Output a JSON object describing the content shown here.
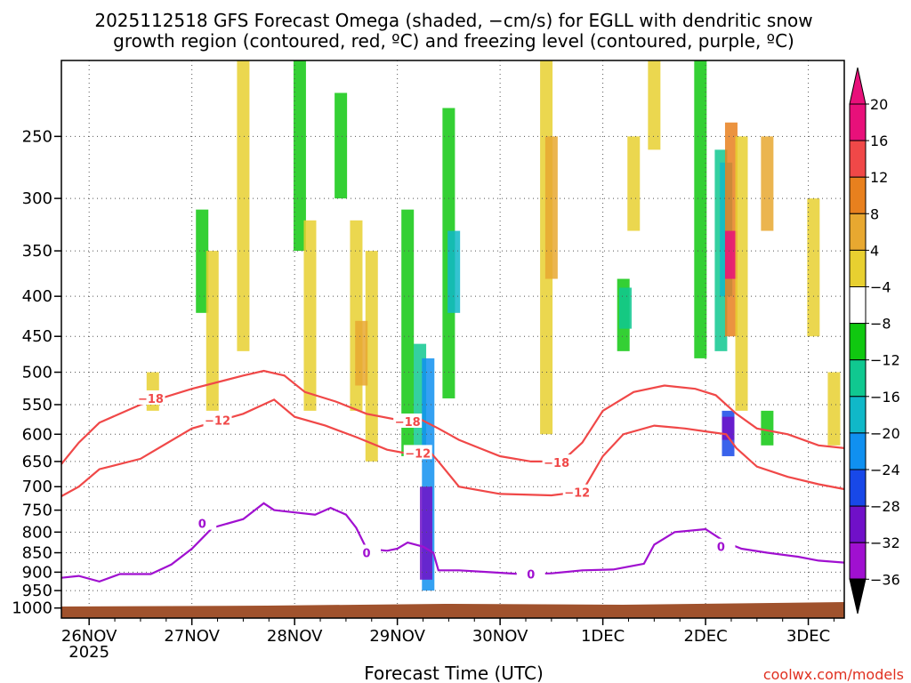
{
  "chart_data": {
    "type": "heatmap",
    "title_line1": "2025112518 GFS Forecast Omega (shaded, −cm/s) for EGLL with dendritic snow",
    "title_line2": "growth region (contoured, red, ºC) and freezing level (contoured, purple, ºC)",
    "xlabel": "Forecast Time (UTC)",
    "watermark": "coolwx.com/models",
    "x_ticks": [
      "26NOV",
      "27NOV",
      "28NOV",
      "29NOV",
      "30NOV",
      "1DEC",
      "2DEC",
      "3DEC"
    ],
    "x_year": "2025",
    "x_range_days": [
      -0.27,
      7.35
    ],
    "y_axis": {
      "type": "log_pressure",
      "range_hPa": [
        200,
        1030
      ]
    },
    "y_ticks": [
      250,
      300,
      350,
      400,
      450,
      500,
      550,
      600,
      650,
      700,
      750,
      800,
      850,
      900,
      950,
      1000
    ],
    "colorbar": {
      "labels": [
        "20",
        "16",
        "12",
        "8",
        "4",
        "−4",
        "−8",
        "−12",
        "−16",
        "−20",
        "−24",
        "−28",
        "−32",
        "−36"
      ],
      "colors": [
        "#e8107a",
        "#f04848",
        "#e8801e",
        "#e8a830",
        "#e8d030",
        "#ffffff",
        "#10c810",
        "#10c890",
        "#10b8c8",
        "#1090f0",
        "#1848e8",
        "#7010c8",
        "#a010d0",
        "#a0a0a0"
      ]
    },
    "contours": [
      {
        "name": "red -18 ºC",
        "color": "#f04848",
        "label": "−18",
        "points": [
          [
            -0.27,
            655
          ],
          [
            -0.1,
            615
          ],
          [
            0.1,
            580
          ],
          [
            0.5,
            550
          ],
          [
            1.0,
            525
          ],
          [
            1.5,
            505
          ],
          [
            1.7,
            498
          ],
          [
            1.9,
            505
          ],
          [
            2.1,
            530
          ],
          [
            2.4,
            545
          ],
          [
            2.7,
            565
          ],
          [
            3.0,
            575
          ],
          [
            3.2,
            572
          ],
          [
            3.4,
            590
          ],
          [
            3.6,
            610
          ],
          [
            3.8,
            625
          ],
          [
            4.0,
            640
          ],
          [
            4.3,
            650
          ],
          [
            4.6,
            650
          ],
          [
            4.8,
            615
          ],
          [
            5.0,
            560
          ],
          [
            5.3,
            530
          ],
          [
            5.6,
            520
          ],
          [
            5.9,
            525
          ],
          [
            6.1,
            535
          ],
          [
            6.3,
            565
          ],
          [
            6.5,
            590
          ],
          [
            6.8,
            600
          ],
          [
            7.1,
            620
          ],
          [
            7.35,
            625
          ]
        ],
        "labels_at": [
          [
            0.6,
            540
          ],
          [
            3.1,
            578
          ],
          [
            4.55,
            652
          ]
        ]
      },
      {
        "name": "red -12 ºC",
        "color": "#f04848",
        "label": "−12",
        "points": [
          [
            -0.27,
            720
          ],
          [
            -0.1,
            700
          ],
          [
            0.1,
            665
          ],
          [
            0.5,
            645
          ],
          [
            1.0,
            590
          ],
          [
            1.5,
            565
          ],
          [
            1.8,
            542
          ],
          [
            2.0,
            570
          ],
          [
            2.3,
            585
          ],
          [
            2.6,
            605
          ],
          [
            2.9,
            628
          ],
          [
            3.1,
            635
          ],
          [
            3.3,
            628
          ],
          [
            3.4,
            650
          ],
          [
            3.6,
            700
          ],
          [
            4.0,
            715
          ],
          [
            4.5,
            718
          ],
          [
            4.8,
            710
          ],
          [
            5.0,
            640
          ],
          [
            5.2,
            600
          ],
          [
            5.5,
            585
          ],
          [
            5.8,
            590
          ],
          [
            6.0,
            595
          ],
          [
            6.2,
            600
          ],
          [
            6.3,
            625
          ],
          [
            6.5,
            660
          ],
          [
            6.8,
            680
          ],
          [
            7.1,
            695
          ],
          [
            7.35,
            705
          ]
        ],
        "labels_at": [
          [
            1.25,
            576
          ],
          [
            3.2,
            634
          ],
          [
            4.75,
            712
          ]
        ]
      },
      {
        "name": "purple 0 ºC (freezing level)",
        "color": "#a010d0",
        "label": "0",
        "points": [
          [
            -0.27,
            915
          ],
          [
            -0.1,
            910
          ],
          [
            0.1,
            925
          ],
          [
            0.3,
            905
          ],
          [
            0.6,
            905
          ],
          [
            0.8,
            880
          ],
          [
            1.0,
            840
          ],
          [
            1.2,
            790
          ],
          [
            1.5,
            770
          ],
          [
            1.7,
            735
          ],
          [
            1.8,
            750
          ],
          [
            2.0,
            755
          ],
          [
            2.2,
            760
          ],
          [
            2.35,
            745
          ],
          [
            2.5,
            760
          ],
          [
            2.6,
            790
          ],
          [
            2.7,
            840
          ],
          [
            2.9,
            845
          ],
          [
            3.0,
            840
          ],
          [
            3.1,
            825
          ],
          [
            3.25,
            835
          ],
          [
            3.35,
            850
          ],
          [
            3.4,
            895
          ],
          [
            3.6,
            895
          ],
          [
            3.9,
            900
          ],
          [
            4.2,
            905
          ],
          [
            4.5,
            903
          ],
          [
            4.8,
            895
          ],
          [
            5.1,
            893
          ],
          [
            5.4,
            878
          ],
          [
            5.5,
            830
          ],
          [
            5.7,
            800
          ],
          [
            6.0,
            793
          ],
          [
            6.2,
            825
          ],
          [
            6.35,
            840
          ],
          [
            6.6,
            850
          ],
          [
            6.9,
            860
          ],
          [
            7.1,
            870
          ],
          [
            7.35,
            875
          ]
        ],
        "labels_at": [
          [
            1.1,
            780
          ],
          [
            2.7,
            850
          ],
          [
            4.3,
            905
          ],
          [
            6.15,
            835
          ]
        ]
      }
    ],
    "omega_cells": [
      {
        "x": 0.62,
        "p_top": 500,
        "p_bot": 560,
        "c": "#e8d030"
      },
      {
        "x": 1.1,
        "p_top": 310,
        "p_bot": 420,
        "c": "#10c810"
      },
      {
        "x": 1.2,
        "p_top": 350,
        "p_bot": 560,
        "c": "#e8d030"
      },
      {
        "x": 1.5,
        "p_top": 200,
        "p_bot": 470,
        "c": "#e8d030"
      },
      {
        "x": 2.05,
        "p_top": 200,
        "p_bot": 350,
        "c": "#10c810"
      },
      {
        "x": 2.15,
        "p_top": 320,
        "p_bot": 560,
        "c": "#e8d030"
      },
      {
        "x": 2.45,
        "p_top": 220,
        "p_bot": 300,
        "c": "#10c810"
      },
      {
        "x": 2.6,
        "p_top": 320,
        "p_bot": 560,
        "c": "#e8d030"
      },
      {
        "x": 2.75,
        "p_top": 350,
        "p_bot": 650,
        "c": "#e8d030"
      },
      {
        "x": 2.65,
        "p_top": 430,
        "p_bot": 520,
        "c": "#e8a830"
      },
      {
        "x": 3.1,
        "p_top": 310,
        "p_bot": 640,
        "c": "#10c810"
      },
      {
        "x": 3.22,
        "p_top": 460,
        "p_bot": 640,
        "c": "#10c890"
      },
      {
        "x": 3.3,
        "p_top": 480,
        "p_bot": 950,
        "c": "#1090f0"
      },
      {
        "x": 3.28,
        "p_top": 700,
        "p_bot": 920,
        "c": "#7010c8"
      },
      {
        "x": 3.5,
        "p_top": 230,
        "p_bot": 540,
        "c": "#10c810"
      },
      {
        "x": 3.55,
        "p_top": 330,
        "p_bot": 420,
        "c": "#10b8c8"
      },
      {
        "x": 4.45,
        "p_top": 200,
        "p_bot": 600,
        "c": "#e8d030"
      },
      {
        "x": 4.5,
        "p_top": 250,
        "p_bot": 380,
        "c": "#e8a830"
      },
      {
        "x": 5.2,
        "p_top": 380,
        "p_bot": 470,
        "c": "#10c810"
      },
      {
        "x": 5.22,
        "p_top": 390,
        "p_bot": 440,
        "c": "#10c890"
      },
      {
        "x": 5.3,
        "p_top": 250,
        "p_bot": 330,
        "c": "#e8d030"
      },
      {
        "x": 5.5,
        "p_top": 200,
        "p_bot": 260,
        "c": "#e8d030"
      },
      {
        "x": 5.95,
        "p_top": 200,
        "p_bot": 480,
        "c": "#10c810"
      },
      {
        "x": 6.15,
        "p_top": 260,
        "p_bot": 470,
        "c": "#10c890"
      },
      {
        "x": 6.2,
        "p_top": 270,
        "p_bot": 400,
        "c": "#10b8c8"
      },
      {
        "x": 6.25,
        "p_top": 240,
        "p_bot": 450,
        "c": "#e8801e"
      },
      {
        "x": 6.25,
        "p_top": 330,
        "p_bot": 380,
        "c": "#e8107a"
      },
      {
        "x": 6.22,
        "p_top": 560,
        "p_bot": 640,
        "c": "#1848e8"
      },
      {
        "x": 6.22,
        "p_top": 570,
        "p_bot": 610,
        "c": "#7010c8"
      },
      {
        "x": 6.35,
        "p_top": 250,
        "p_bot": 560,
        "c": "#e8d030"
      },
      {
        "x": 6.6,
        "p_top": 250,
        "p_bot": 330,
        "c": "#e8a830"
      },
      {
        "x": 6.6,
        "p_top": 560,
        "p_bot": 620,
        "c": "#10c810"
      },
      {
        "x": 7.05,
        "p_top": 300,
        "p_bot": 450,
        "c": "#e8d030"
      },
      {
        "x": 7.25,
        "p_top": 500,
        "p_bot": 620,
        "c": "#e8d030"
      }
    ]
  }
}
